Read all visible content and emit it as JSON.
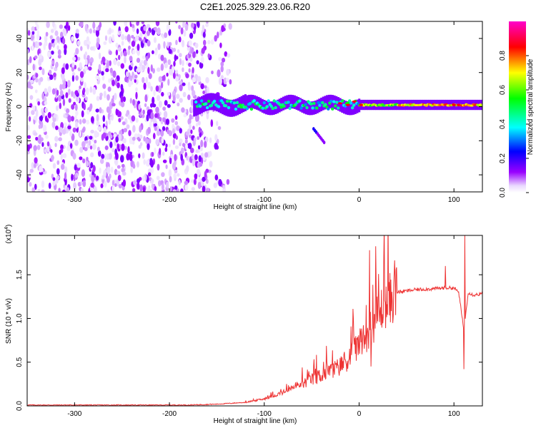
{
  "title": "C2E1.2025.329.23.06.R20",
  "chart_data": [
    {
      "type": "heatmap",
      "title": "C2E1.2025.329.23.06.R20",
      "xlabel": "Height of straight line (km)",
      "ylabel": "Frequency (Hz)",
      "xlim": [
        -350,
        130
      ],
      "ylim": [
        -50,
        50
      ],
      "x_ticks": [
        "-300",
        "-200",
        "-100",
        "0",
        "100"
      ],
      "y_ticks": [
        "-40",
        "-20",
        "0",
        "20",
        "40"
      ],
      "colorbar": {
        "label": "Normalized spectral amplitude",
        "range": [
          0.0,
          1.0
        ],
        "ticks": [
          "0.0",
          "0.2",
          "0.4",
          "0.6",
          "0.8"
        ],
        "colors": [
          "#ffffff",
          "#9900ff",
          "#0000ff",
          "#00ffff",
          "#00ff00",
          "#ffff00",
          "#ff0000",
          "#ff00cc"
        ]
      },
      "features": [
        {
          "name": "noise",
          "x_range": [
            -350,
            -160
          ],
          "freq_range": [
            -50,
            50
          ],
          "amplitude": 0.1
        },
        {
          "name": "signal",
          "x_range": [
            -175,
            130
          ],
          "freq_center": 1,
          "amplitude_start": 0.4,
          "amplitude_end": 0.85
        },
        {
          "name": "secondary",
          "x_range": [
            -50,
            -37
          ],
          "freq_range": [
            -22,
            -12
          ],
          "amplitude": 0.2
        }
      ]
    },
    {
      "type": "line",
      "xlabel": "Height of straight line (km)",
      "ylabel": "SNR (10 * v/v)",
      "y_multiplier": "(x10",
      "y_multiplier_exp": "4",
      "xlim": [
        -350,
        130
      ],
      "ylim": [
        0,
        1.95
      ],
      "x_ticks": [
        "-300",
        "-200",
        "-100",
        "0",
        "100"
      ],
      "y_ticks": [
        "0.0",
        "0.5",
        "1.0",
        "1.5"
      ],
      "color": "#ee3333",
      "x": [
        -350,
        -250,
        -180,
        -150,
        -120,
        -100,
        -80,
        -60,
        -50,
        -40,
        -30,
        -20,
        -10,
        0,
        10,
        20,
        30,
        40,
        60,
        80,
        90,
        100,
        105,
        110,
        112,
        115,
        120,
        130
      ],
      "y": [
        0.01,
        0.01,
        0.01,
        0.02,
        0.04,
        0.08,
        0.15,
        0.25,
        0.3,
        0.35,
        0.4,
        0.45,
        0.55,
        0.7,
        0.85,
        1.05,
        1.2,
        1.3,
        1.33,
        1.34,
        1.35,
        1.35,
        1.3,
        0.9,
        1.0,
        1.3,
        1.27,
        1.28
      ]
    }
  ]
}
